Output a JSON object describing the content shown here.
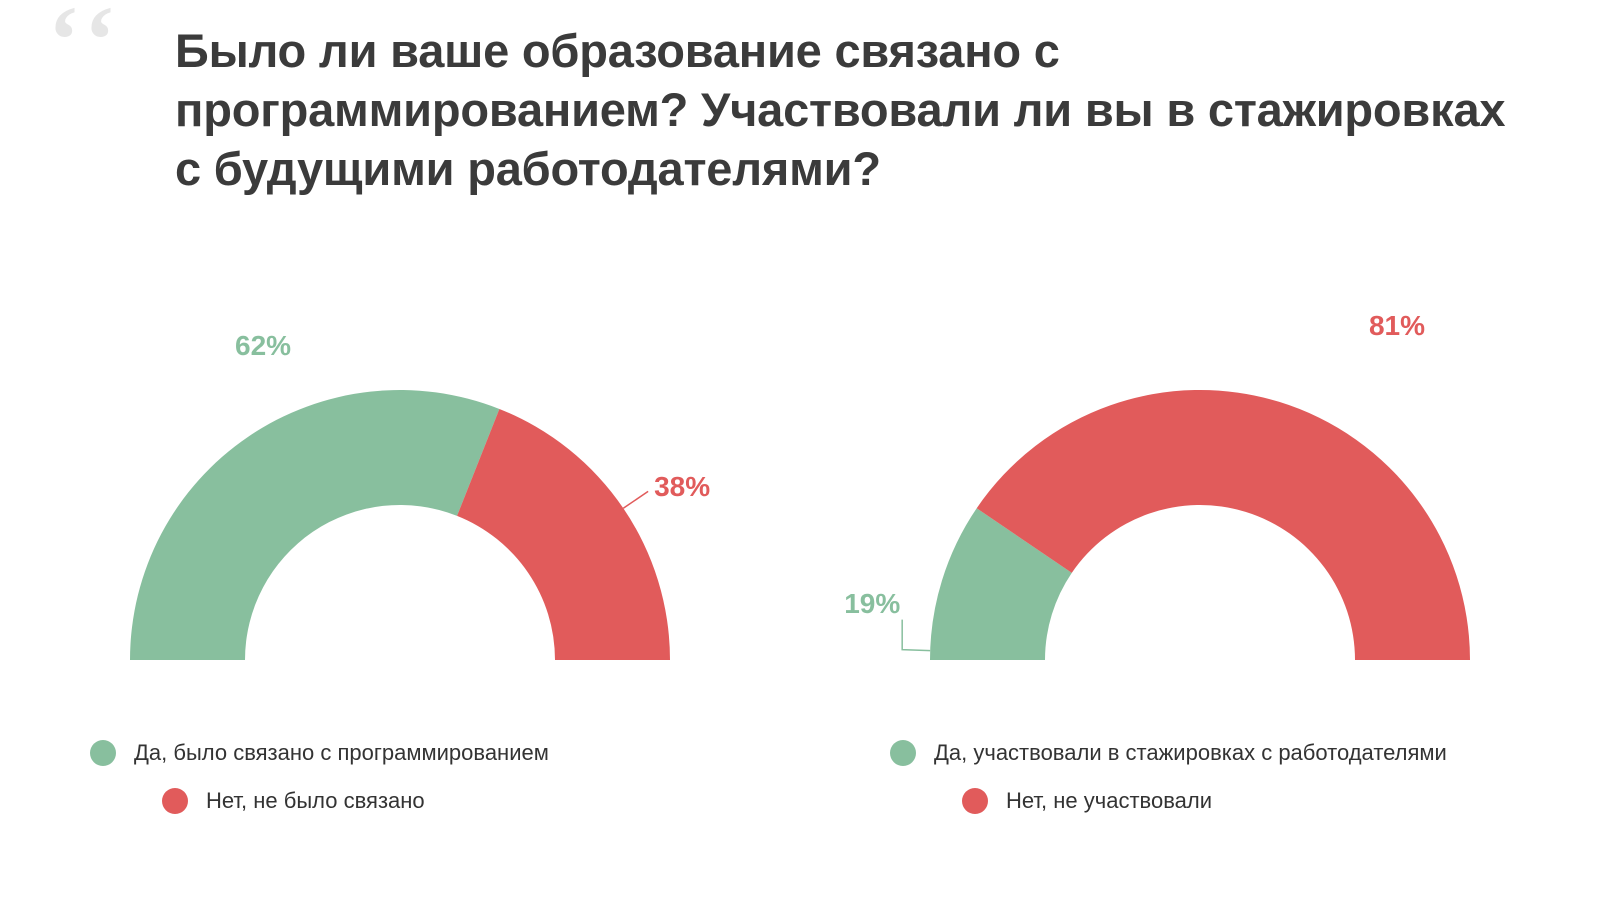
{
  "title": "Было ли ваше образование связано с программированием? Участвовали ли вы в стажировках с будущими работодателями?",
  "colors": {
    "green": "#88bf9e",
    "red": "#e15b5b",
    "bg": "#ffffff",
    "text": "#333333",
    "quote": "#e6e6e6"
  },
  "chart_style": {
    "type": "half_donut",
    "outer_radius": 270,
    "inner_radius": 155,
    "label_fontsize": 28,
    "legend_fontsize": 22,
    "title_fontsize": 47
  },
  "charts": [
    {
      "id": "education",
      "slices": [
        {
          "key": "yes",
          "value": 62,
          "label": "62%",
          "color": "#88bf9e",
          "legend": "Да, было связано с программированием"
        },
        {
          "key": "no",
          "value": 38,
          "label": "38%",
          "color": "#e15b5b",
          "legend": "Нет, не было связано"
        }
      ]
    },
    {
      "id": "internships",
      "slices": [
        {
          "key": "yes",
          "value": 19,
          "label": "19%",
          "color": "#88bf9e",
          "legend": "Да, участвовали в стажировках с работодателями"
        },
        {
          "key": "no",
          "value": 81,
          "label": "81%",
          "color": "#e15b5b",
          "legend": "Нет, не участвовали"
        }
      ]
    }
  ]
}
